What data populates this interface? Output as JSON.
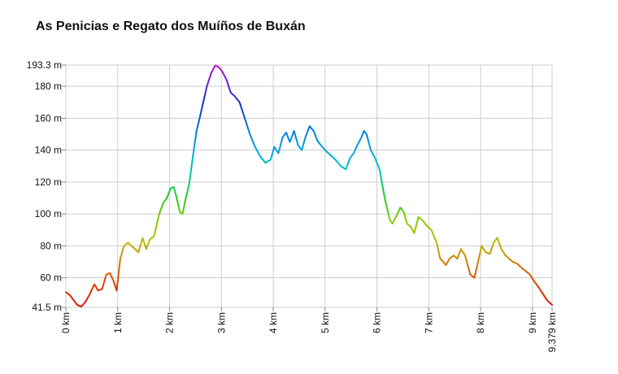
{
  "chart_data": {
    "type": "line",
    "title": "As Penicias e Regato dos Muíños de Buxán",
    "xlabel": "",
    "ylabel": "",
    "xlim": [
      0,
      9.379
    ],
    "ylim": [
      41.5,
      193.3
    ],
    "grid": true,
    "x_ticks": [
      {
        "value": 0,
        "label": "0 km"
      },
      {
        "value": 1,
        "label": "1 km"
      },
      {
        "value": 2,
        "label": "2 km"
      },
      {
        "value": 3,
        "label": "3 km"
      },
      {
        "value": 4,
        "label": "4 km"
      },
      {
        "value": 5,
        "label": "5 km"
      },
      {
        "value": 6,
        "label": "6 km"
      },
      {
        "value": 7,
        "label": "7 km"
      },
      {
        "value": 8,
        "label": "8 km"
      },
      {
        "value": 9,
        "label": "9 km"
      },
      {
        "value": 9.379,
        "label": "9.379 km"
      }
    ],
    "y_ticks": [
      {
        "value": 41.5,
        "label": "41.5 m"
      },
      {
        "value": 60,
        "label": "60 m"
      },
      {
        "value": 80,
        "label": "80 m"
      },
      {
        "value": 100,
        "label": "100 m"
      },
      {
        "value": 120,
        "label": "120 m"
      },
      {
        "value": 140,
        "label": "140 m"
      },
      {
        "value": 160,
        "label": "160 m"
      },
      {
        "value": 180,
        "label": "180 m"
      },
      {
        "value": 193.3,
        "label": "193.3 m"
      }
    ],
    "color_scale": "elevation-gradient red-yellow-green-cyan-blue-purple",
    "series": [
      {
        "x": [
          0,
          0.08,
          0.15,
          0.22,
          0.3,
          0.38,
          0.45,
          0.55,
          0.62,
          0.7,
          0.78,
          0.85,
          0.92,
          0.98,
          1.05,
          1.12,
          1.2,
          1.3,
          1.4,
          1.48,
          1.55,
          1.62,
          1.7,
          1.8,
          1.88,
          1.95,
          2.02,
          2.08,
          2.13,
          2.2,
          2.25,
          2.3,
          2.38,
          2.45,
          2.52,
          2.58,
          2.65,
          2.72,
          2.8,
          2.88,
          2.95,
          3.02,
          3.1,
          3.18,
          3.25,
          3.35,
          3.45,
          3.55,
          3.65,
          3.75,
          3.85,
          3.95,
          4.02,
          4.1,
          4.18,
          4.25,
          4.32,
          4.4,
          4.48,
          4.55,
          4.62,
          4.7,
          4.78,
          4.85,
          4.92,
          5.0,
          5.1,
          5.2,
          5.3,
          5.4,
          5.48,
          5.55,
          5.62,
          5.7,
          5.75,
          5.8,
          5.88,
          5.95,
          6.05,
          6.15,
          6.25,
          6.3,
          6.38,
          6.45,
          6.52,
          6.58,
          6.65,
          6.72,
          6.8,
          6.88,
          6.95,
          7.05,
          7.15,
          7.22,
          7.28,
          7.33,
          7.4,
          7.48,
          7.55,
          7.62,
          7.7,
          7.8,
          7.88,
          7.95,
          8.02,
          8.1,
          8.18,
          8.25,
          8.32,
          8.4,
          8.48,
          8.55,
          8.62,
          8.7,
          8.8,
          8.88,
          8.95,
          9.05,
          9.12,
          9.2,
          9.28,
          9.379
        ],
        "y": [
          51,
          49,
          46,
          43,
          42,
          45,
          49,
          56,
          52,
          53,
          62,
          63,
          58,
          52,
          72,
          80,
          82,
          79,
          76,
          85,
          78,
          84,
          86,
          100,
          107,
          110,
          116,
          117,
          111,
          101,
          100,
          108,
          119,
          136,
          152,
          160,
          170,
          180,
          188,
          193,
          192,
          189,
          184,
          176,
          174,
          170,
          160,
          150,
          142,
          136,
          132,
          134,
          142,
          138,
          148,
          151,
          145,
          152,
          143,
          140,
          148,
          155,
          152,
          146,
          143,
          140,
          137,
          134,
          130,
          128,
          135,
          138,
          143,
          148,
          152,
          150,
          140,
          136,
          128,
          110,
          96,
          94,
          99,
          104,
          101,
          94,
          92,
          88,
          98,
          96,
          93,
          90,
          82,
          72,
          70,
          68,
          72,
          74,
          72,
          78,
          74,
          62,
          60,
          70,
          80,
          76,
          75,
          82,
          85,
          78,
          74,
          72,
          70,
          69,
          66,
          64,
          62,
          57,
          54,
          50,
          46,
          43
        ]
      }
    ]
  }
}
